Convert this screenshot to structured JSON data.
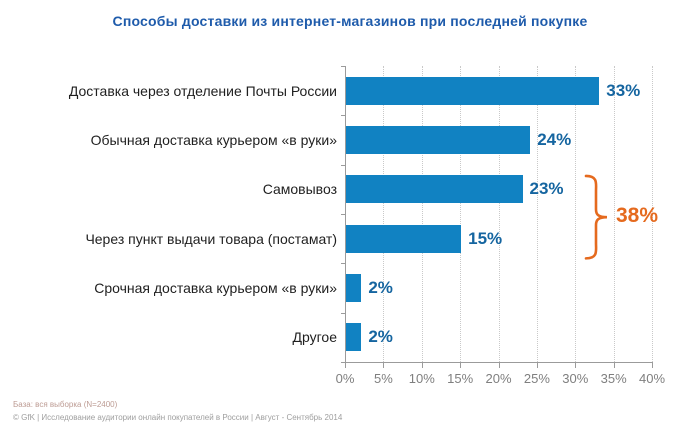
{
  "title": "Способы доставки из интернет-магазинов при последней покупке",
  "chart_data": {
    "type": "bar",
    "orientation": "horizontal",
    "title": "Способы доставки из интернет-магазинов при последней покупке",
    "categories": [
      "Доставка через отделение Почты России",
      "Обычная доставка курьером «в руки»",
      "Самовывоз",
      "Через пункт выдачи товара (постамат)",
      "Срочная доставка курьером «в руки»",
      "Другое"
    ],
    "values": [
      33,
      24,
      23,
      15,
      2,
      2
    ],
    "value_labels": [
      "33%",
      "24%",
      "23%",
      "15%",
      "2%",
      "2%"
    ],
    "xlabel": "",
    "ylabel": "",
    "xlim": [
      0,
      40
    ],
    "x_ticks": [
      "0%",
      "5%",
      "10%",
      "15%",
      "20%",
      "25%",
      "30%",
      "35%",
      "40%"
    ],
    "grid": "vertical-dotted",
    "legend": "none",
    "annotation": {
      "label": "38%",
      "grouped_categories": [
        "Самовывоз",
        "Через пункт выдачи товара (постамат)"
      ],
      "group_rows": [
        2,
        3
      ]
    },
    "colors": {
      "bar": "#1182c2",
      "value_label": "#1565a0",
      "annotation": "#e56a1e",
      "title": "#1e5bab",
      "axis": "#9b9b9b",
      "tick_label": "#7f7f7f",
      "gridline": "#c9c9c9"
    }
  },
  "footer": {
    "line1": "База: вся выборка (N=2400)",
    "line2": "© GfK | Исследование аудитории онлайн покупателей в России | Август - Сентябрь 2014"
  }
}
